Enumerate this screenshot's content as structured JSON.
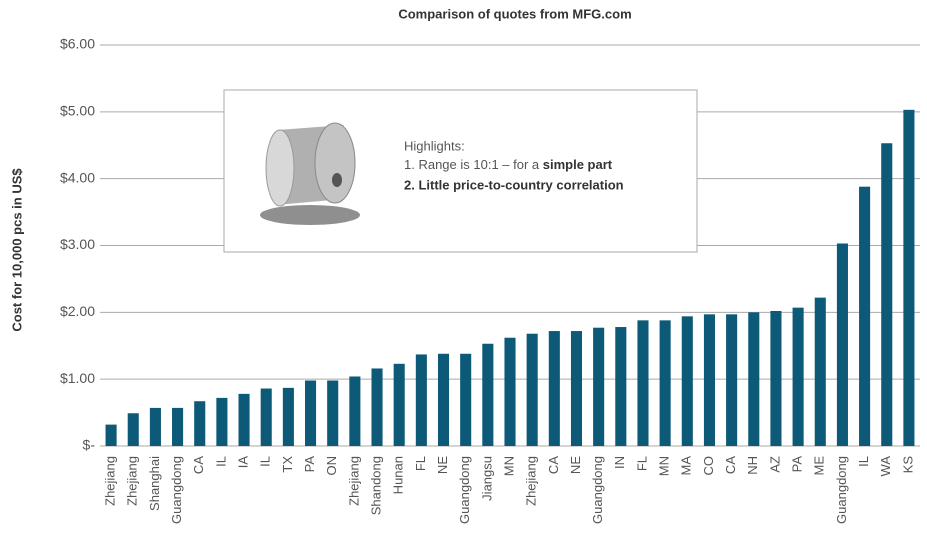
{
  "chart_data": {
    "type": "bar",
    "title": "Comparison of quotes from MFG.com",
    "y_label": "Cost for 10,000 pcs in US$",
    "annotation": {
      "heading": "Highlights:",
      "line1": "1. Range is 10:1 – for a ",
      "line1_bold": "simple part",
      "line2": "2. Little price-to-country correlation"
    },
    "categories": [
      "Zhejiang",
      "Zhejiang",
      "Shanghai",
      "Guangdong",
      "CA",
      "IL",
      "IA",
      "IL",
      "TX",
      "PA",
      "ON",
      "Zhejiang",
      "Shandong",
      "Hunan",
      "FL",
      "NE",
      "Guangdong",
      "Jiangsu",
      "MN",
      "Zhejiang",
      "CA",
      "NE",
      "Guangdong",
      "IN",
      "FL",
      "MN",
      "MA",
      "CO",
      "CA",
      "NH",
      "AZ",
      "PA",
      "ME",
      "Guangdong",
      "IL",
      "WA",
      "KS"
    ],
    "values": [
      0.32,
      0.49,
      0.57,
      0.57,
      0.67,
      0.72,
      0.78,
      0.86,
      0.87,
      0.98,
      0.98,
      1.04,
      1.16,
      1.23,
      1.37,
      1.38,
      1.38,
      1.53,
      1.62,
      1.68,
      1.72,
      1.72,
      1.77,
      1.78,
      1.88,
      1.88,
      1.94,
      1.97,
      1.97,
      2.0,
      2.02,
      2.07,
      2.22,
      3.03,
      3.88,
      4.53,
      5.03
    ],
    "color": "#0d5a78",
    "ylim": [
      0,
      6
    ],
    "yticks": [
      {
        "value": 0,
        "label": "$-"
      },
      {
        "value": 1,
        "label": "$1.00"
      },
      {
        "value": 2,
        "label": "$2.00"
      },
      {
        "value": 3,
        "label": "$3.00"
      },
      {
        "value": 4,
        "label": "$4.00"
      },
      {
        "value": 5,
        "label": "$5.00"
      },
      {
        "value": 6,
        "label": "$6.00"
      }
    ],
    "grid": true
  }
}
